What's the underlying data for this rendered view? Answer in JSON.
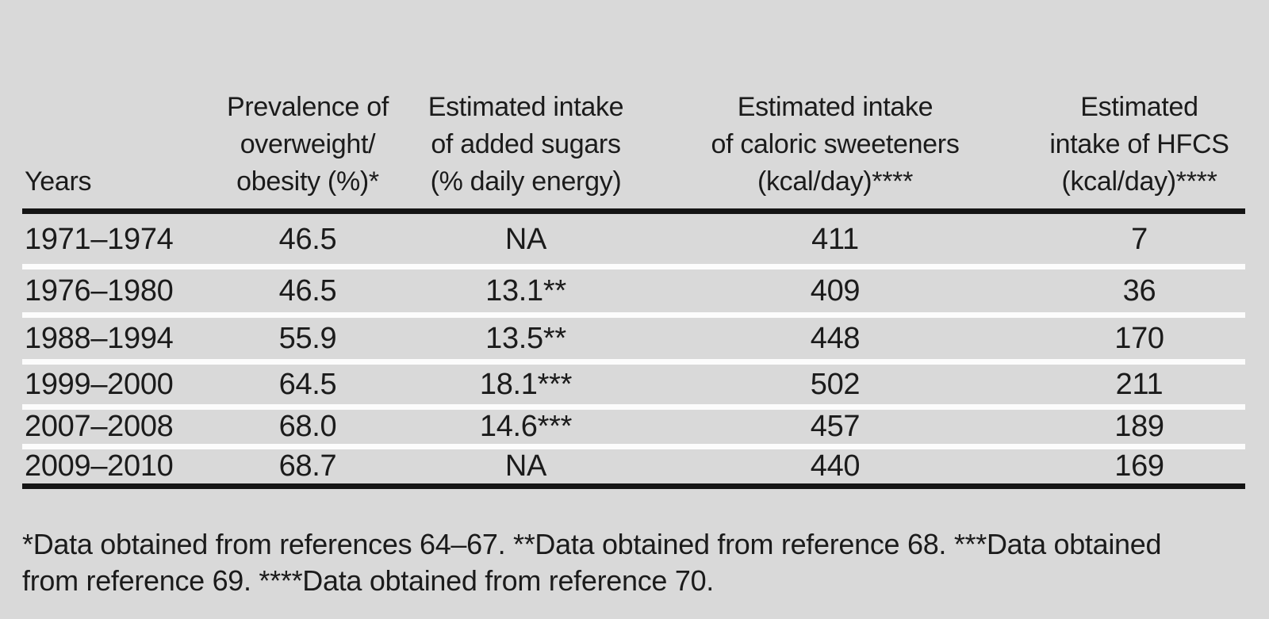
{
  "colors": {
    "background": "#d9d9d9",
    "row_separator": "#fcfcfc",
    "rule": "#151515",
    "text": "#1b1b1b"
  },
  "table": {
    "columns": [
      {
        "id": "years",
        "lines": [
          "Years"
        ]
      },
      {
        "id": "overweight",
        "lines": [
          "Prevalence of",
          "overweight/",
          "obesity (%)*"
        ]
      },
      {
        "id": "sugars",
        "lines": [
          "Estimated intake",
          "of added sugars",
          "(% daily energy)"
        ]
      },
      {
        "id": "sweeteners",
        "lines": [
          "Estimated intake",
          "of caloric sweeteners",
          "(kcal/day)****"
        ]
      },
      {
        "id": "hfcs",
        "lines": [
          "Estimated",
          "intake of HFCS",
          "(kcal/day)****"
        ]
      }
    ],
    "rows": [
      {
        "cells": [
          "1971–1974",
          "46.5",
          "NA",
          "411",
          "7"
        ]
      },
      {
        "cells": [
          "1976–1980",
          "46.5",
          "13.1**",
          "409",
          "36"
        ]
      },
      {
        "cells": [
          "1988–1994",
          "55.9",
          "13.5**",
          "448",
          "170"
        ]
      },
      {
        "cells": [
          "1999–2000",
          "64.5",
          "18.1***",
          "502",
          "211"
        ]
      },
      {
        "cells": [
          "2007–2008",
          "68.0",
          "14.6***",
          "457",
          "189"
        ]
      },
      {
        "cells": [
          "2009–2010",
          "68.7",
          "NA",
          "440",
          "169"
        ]
      }
    ]
  },
  "footnote": {
    "lines": [
      "*Data obtained from references 64–67. **Data obtained from reference 68. ***Data obtained",
      "from reference 69. ****Data obtained from reference 70."
    ]
  },
  "chart_data": {
    "type": "table",
    "categories": [
      "1971–1974",
      "1976–1980",
      "1988–1994",
      "1999–2000",
      "2007–2008",
      "2009–2010"
    ],
    "series": [
      {
        "name": "Prevalence of overweight/obesity (%)",
        "values": [
          46.5,
          46.5,
          55.9,
          64.5,
          68.0,
          68.7
        ]
      },
      {
        "name": "Estimated intake of added sugars (% daily energy)",
        "values": [
          null,
          13.1,
          13.5,
          18.1,
          14.6,
          null
        ]
      },
      {
        "name": "Estimated intake of caloric sweeteners (kcal/day)",
        "values": [
          411,
          409,
          448,
          502,
          457,
          440
        ]
      },
      {
        "name": "Estimated intake of HFCS (kcal/day)",
        "values": [
          7,
          36,
          170,
          211,
          189,
          169
        ]
      }
    ]
  }
}
